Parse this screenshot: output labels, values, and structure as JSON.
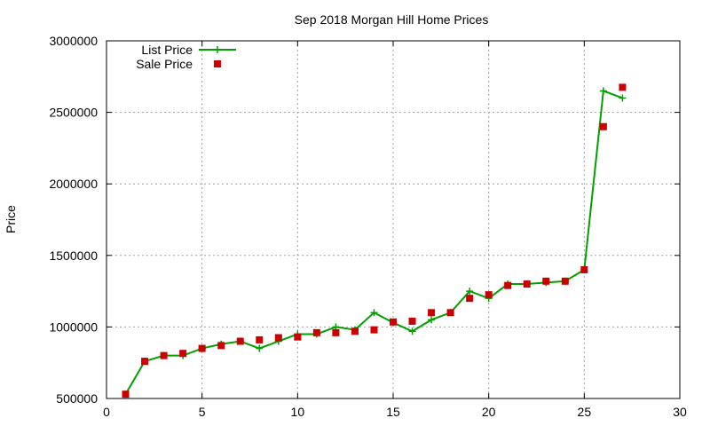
{
  "chart_data": {
    "type": "line",
    "title": "Sep 2018 Morgan Hill Home Prices",
    "xlabel": "",
    "ylabel": "Price",
    "xlim": [
      0,
      30
    ],
    "ylim": [
      500000,
      3000000
    ],
    "x_ticks": [
      0,
      5,
      10,
      15,
      20,
      25,
      30
    ],
    "y_ticks": [
      500000,
      1000000,
      1500000,
      2000000,
      2500000,
      3000000
    ],
    "grid": true,
    "legend_position": "top-left",
    "series": [
      {
        "name": "List Price",
        "style": "line-with-plus-markers",
        "color": "#00a000",
        "x": [
          1,
          2,
          3,
          4,
          5,
          6,
          7,
          8,
          9,
          10,
          11,
          12,
          13,
          14,
          15,
          16,
          17,
          18,
          19,
          20,
          21,
          22,
          23,
          24,
          25,
          26,
          27
        ],
        "values": [
          530000,
          760000,
          800000,
          800000,
          850000,
          880000,
          900000,
          850000,
          900000,
          950000,
          950000,
          1000000,
          980000,
          1100000,
          1030000,
          970000,
          1050000,
          1100000,
          1250000,
          1200000,
          1300000,
          1300000,
          1310000,
          1320000,
          1400000,
          2650000,
          2600000
        ]
      },
      {
        "name": "Sale Price",
        "style": "square-markers",
        "color": "#cc0000",
        "x": [
          1,
          2,
          3,
          4,
          5,
          6,
          7,
          8,
          9,
          10,
          11,
          12,
          13,
          14,
          15,
          16,
          17,
          18,
          19,
          20,
          21,
          22,
          23,
          24,
          25,
          26,
          27
        ],
        "values": [
          530000,
          760000,
          800000,
          815000,
          850000,
          870000,
          900000,
          910000,
          925000,
          930000,
          960000,
          960000,
          970000,
          980000,
          1035000,
          1040000,
          1100000,
          1100000,
          1200000,
          1225000,
          1290000,
          1300000,
          1320000,
          1320000,
          1400000,
          2400000,
          2675000
        ]
      }
    ]
  }
}
